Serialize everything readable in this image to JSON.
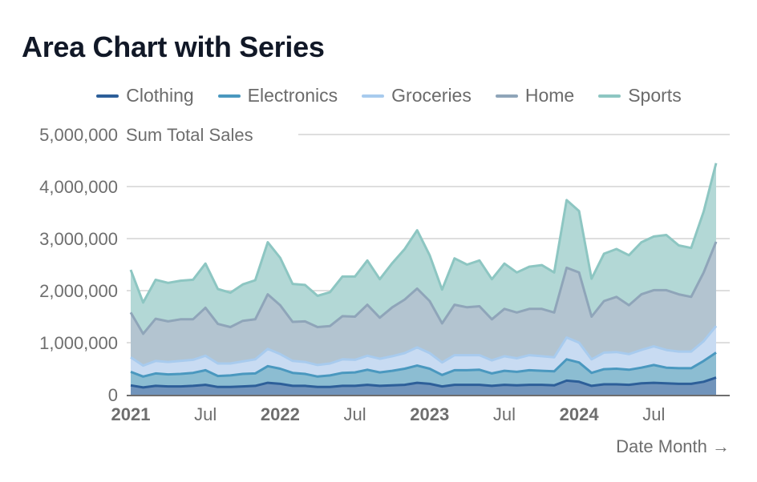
{
  "chart_data": {
    "type": "area",
    "stacked": true,
    "title": "Area Chart with Series",
    "xlabel": "Date Month →",
    "ylabel": "Sum Total Sales",
    "ylim": [
      0,
      5000000
    ],
    "grid": true,
    "legend_position": "top",
    "yticks": [
      "0",
      "1,000,000",
      "2,000,000",
      "3,000,000",
      "4,000,000",
      "5,000,000"
    ],
    "xticks": [
      {
        "label": "2021",
        "month": 0,
        "bold": true
      },
      {
        "label": "Jul",
        "month": 6,
        "bold": false
      },
      {
        "label": "2022",
        "month": 12,
        "bold": true
      },
      {
        "label": "Jul",
        "month": 18,
        "bold": false
      },
      {
        "label": "2023",
        "month": 24,
        "bold": true
      },
      {
        "label": "Jul",
        "month": 30,
        "bold": false
      },
      {
        "label": "2024",
        "month": 36,
        "bold": true
      },
      {
        "label": "Jul",
        "month": 42,
        "bold": false
      }
    ],
    "x": [
      "2021-01",
      "2021-02",
      "2021-03",
      "2021-04",
      "2021-05",
      "2021-06",
      "2021-07",
      "2021-08",
      "2021-09",
      "2021-10",
      "2021-11",
      "2021-12",
      "2022-01",
      "2022-02",
      "2022-03",
      "2022-04",
      "2022-05",
      "2022-06",
      "2022-07",
      "2022-08",
      "2022-09",
      "2022-10",
      "2022-11",
      "2022-12",
      "2023-01",
      "2023-02",
      "2023-03",
      "2023-04",
      "2023-05",
      "2023-06",
      "2023-07",
      "2023-08",
      "2023-09",
      "2023-10",
      "2023-11",
      "2023-12",
      "2024-01",
      "2024-02",
      "2024-03",
      "2024-04",
      "2024-05",
      "2024-06",
      "2024-07",
      "2024-08",
      "2024-09",
      "2024-10",
      "2024-11",
      "2024-12"
    ],
    "series": [
      {
        "name": "Clothing",
        "line": "#2d5f99",
        "fill": "#7194bb",
        "values": [
          180000,
          140000,
          170000,
          160000,
          160000,
          170000,
          190000,
          150000,
          150000,
          160000,
          170000,
          230000,
          210000,
          170000,
          170000,
          150000,
          150000,
          170000,
          170000,
          190000,
          170000,
          180000,
          190000,
          230000,
          210000,
          160000,
          190000,
          190000,
          190000,
          170000,
          190000,
          180000,
          190000,
          190000,
          180000,
          270000,
          250000,
          170000,
          200000,
          200000,
          190000,
          220000,
          230000,
          220000,
          210000,
          210000,
          250000,
          330000
        ]
      },
      {
        "name": "Electronics",
        "line": "#4a98bf",
        "fill": "#8cbdd2",
        "values": [
          260000,
          210000,
          240000,
          230000,
          240000,
          250000,
          280000,
          210000,
          220000,
          240000,
          240000,
          320000,
          290000,
          250000,
          230000,
          200000,
          220000,
          250000,
          260000,
          290000,
          260000,
          280000,
          310000,
          330000,
          290000,
          220000,
          280000,
          280000,
          290000,
          240000,
          270000,
          260000,
          280000,
          270000,
          270000,
          410000,
          370000,
          250000,
          290000,
          300000,
          290000,
          300000,
          340000,
          300000,
          300000,
          300000,
          400000,
          480000
        ]
      },
      {
        "name": "Groceries",
        "line": "#a8cbee",
        "fill": "#c8dbf2",
        "values": [
          280000,
          210000,
          240000,
          240000,
          250000,
          250000,
          280000,
          240000,
          230000,
          240000,
          270000,
          330000,
          280000,
          230000,
          230000,
          220000,
          230000,
          260000,
          240000,
          270000,
          260000,
          280000,
          300000,
          350000,
          300000,
          240000,
          290000,
          290000,
          280000,
          250000,
          280000,
          260000,
          290000,
          280000,
          270000,
          420000,
          380000,
          260000,
          320000,
          320000,
          300000,
          340000,
          360000,
          340000,
          320000,
          320000,
          380000,
          510000
        ]
      },
      {
        "name": "Home",
        "line": "#8fa5b9",
        "fill": "#b3c4d0",
        "values": [
          860000,
          610000,
          810000,
          780000,
          800000,
          780000,
          920000,
          760000,
          700000,
          780000,
          770000,
          1050000,
          940000,
          750000,
          780000,
          730000,
          720000,
          830000,
          830000,
          980000,
          790000,
          940000,
          1030000,
          1130000,
          1000000,
          750000,
          970000,
          920000,
          940000,
          790000,
          910000,
          880000,
          890000,
          910000,
          860000,
          1340000,
          1350000,
          820000,
          990000,
          1060000,
          940000,
          1070000,
          1080000,
          1150000,
          1100000,
          1050000,
          1320000,
          1620000
        ]
      },
      {
        "name": "Sports",
        "line": "#8dc6c2",
        "fill": "#b3d8d6",
        "values": [
          820000,
          600000,
          750000,
          740000,
          740000,
          760000,
          850000,
          670000,
          660000,
          700000,
          750000,
          1000000,
          910000,
          730000,
          700000,
          600000,
          650000,
          760000,
          770000,
          850000,
          740000,
          850000,
          970000,
          1120000,
          880000,
          650000,
          890000,
          820000,
          880000,
          770000,
          870000,
          770000,
          810000,
          840000,
          770000,
          1300000,
          1180000,
          730000,
          910000,
          920000,
          960000,
          1000000,
          1030000,
          1060000,
          940000,
          940000,
          1170000,
          1510000
        ]
      }
    ]
  }
}
